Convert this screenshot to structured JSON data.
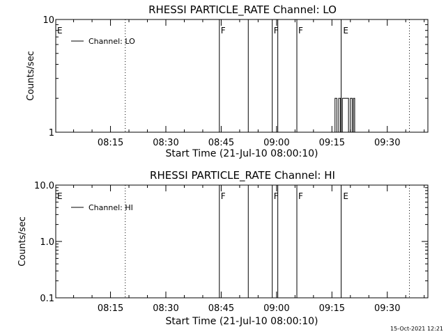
{
  "footer": {
    "date": "15-Oct-2021 12:21"
  },
  "chart_data": [
    {
      "type": "line",
      "title": "RHESSI PARTICLE_RATE Channel: LO",
      "xlabel": "Start Time (21-Jul-10 08:00:10)",
      "ylabel": "Counts/sec",
      "yscale": "log",
      "ylim": [
        1,
        10
      ],
      "y_ticks": [
        "1",
        "10"
      ],
      "xlim": [
        "08:00:10",
        "09:41:00"
      ],
      "x_ticks": [
        "08:15",
        "08:30",
        "08:45",
        "09:00",
        "09:15",
        "09:30"
      ],
      "legend": {
        "placement": "top-left",
        "entries": [
          "Channel: LO"
        ]
      },
      "series": [
        {
          "name": "Channel: LO",
          "x": [
            "09:15:00",
            "09:15:50",
            "09:16:20",
            "09:16:50",
            "09:17:20",
            "09:17:50",
            "09:18:20",
            "09:18:40",
            "09:19:30",
            "09:20:00",
            "09:20:30",
            "09:20:50",
            "09:21:10"
          ],
          "y": [
            1,
            2,
            1,
            2,
            1,
            2,
            2,
            2,
            1,
            2,
            1,
            2,
            1
          ]
        }
      ],
      "dotted_lines": [
        "08:19:00",
        "09:36:00"
      ],
      "solid_lines": [
        "08:44:30",
        "08:52:20",
        "08:58:50",
        "09:00:20",
        "09:05:30",
        "09:17:30"
      ],
      "flags": [
        {
          "label": "E",
          "x": "08:00:10"
        },
        {
          "label": "F",
          "x": "08:44:30"
        },
        {
          "label": "F",
          "x": "08:58:50"
        },
        {
          "label": "F",
          "x": "09:05:30"
        },
        {
          "label": "E",
          "x": "09:17:40"
        }
      ]
    },
    {
      "type": "line",
      "title": "RHESSI PARTICLE_RATE Channel: HI",
      "xlabel": "Start Time (21-Jul-10 08:00:10)",
      "ylabel": "Counts/sec",
      "yscale": "log",
      "ylim": [
        0.1,
        10
      ],
      "y_ticks": [
        "0.1",
        "1.0",
        "10.0"
      ],
      "xlim": [
        "08:00:10",
        "09:41:00"
      ],
      "x_ticks": [
        "08:15",
        "08:30",
        "08:45",
        "09:00",
        "09:15",
        "09:30"
      ],
      "legend": {
        "placement": "top-left",
        "entries": [
          "Channel: HI"
        ]
      },
      "series": [
        {
          "name": "Channel: HI",
          "x": [],
          "y": []
        }
      ],
      "dotted_lines": [
        "08:19:00",
        "09:36:00"
      ],
      "solid_lines": [
        "08:44:30",
        "08:52:20",
        "08:58:50",
        "09:00:20",
        "09:05:30",
        "09:17:30"
      ],
      "flags": [
        {
          "label": "E",
          "x": "08:00:10"
        },
        {
          "label": "F",
          "x": "08:44:30"
        },
        {
          "label": "F",
          "x": "08:58:50"
        },
        {
          "label": "F",
          "x": "09:05:30"
        },
        {
          "label": "E",
          "x": "09:17:40"
        }
      ]
    }
  ]
}
